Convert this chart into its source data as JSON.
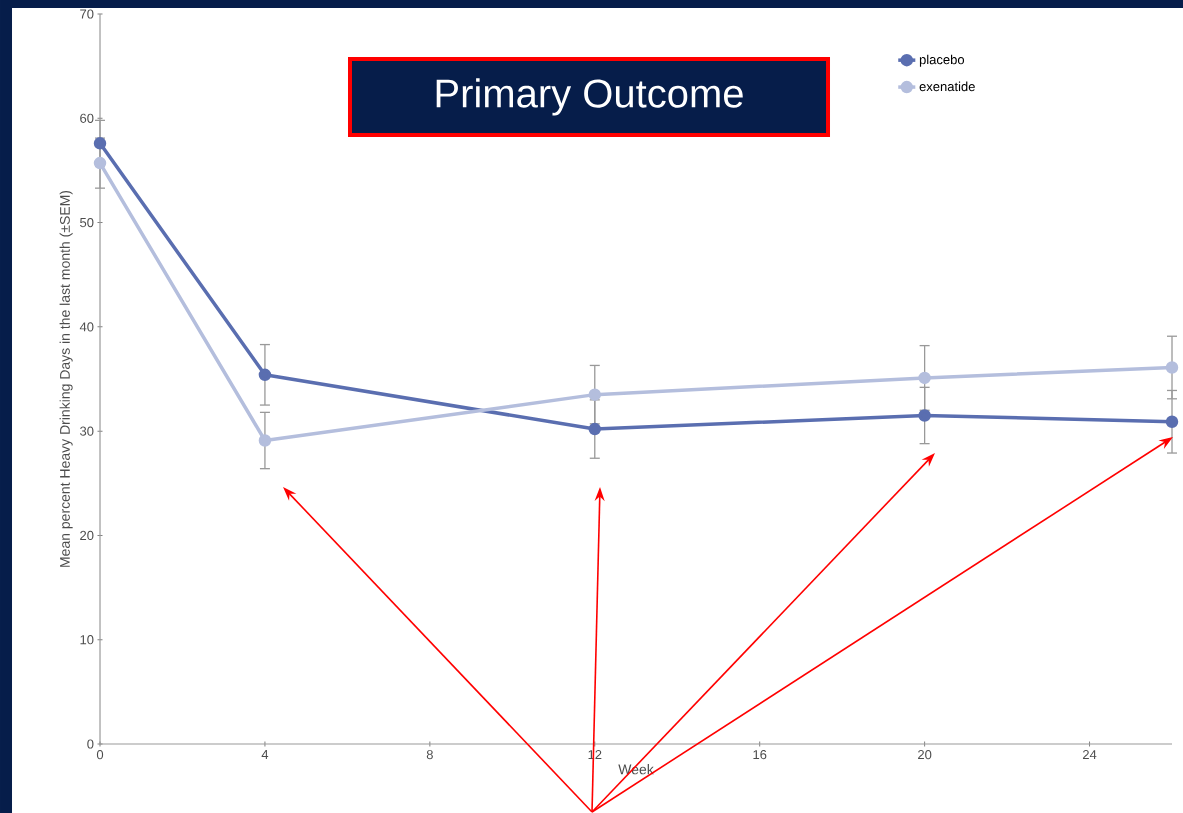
{
  "chart_data": {
    "type": "line",
    "title": "Primary Outcome",
    "xlabel": "Week",
    "ylabel": "Mean percent Heavy Drinking Days in the last month (±SEM)",
    "xlim": [
      0,
      26
    ],
    "xticks": [
      0,
      4,
      8,
      12,
      16,
      20,
      24
    ],
    "ylim": [
      0,
      70
    ],
    "yticks": [
      0,
      10,
      20,
      30,
      40,
      50,
      60,
      70
    ],
    "x": [
      0,
      4,
      12,
      20,
      26
    ],
    "series": [
      {
        "name": "placebo",
        "color": "#5a6eb0",
        "values": [
          57.6,
          35.4,
          30.2,
          31.5,
          30.9
        ],
        "errors": [
          2.2,
          2.9,
          2.8,
          2.7,
          3.0
        ]
      },
      {
        "name": "exenatide",
        "color": "#b4bedd",
        "values": [
          55.7,
          29.1,
          33.5,
          35.1,
          36.1
        ],
        "errors": [
          2.4,
          2.7,
          2.8,
          3.1,
          3.0
        ]
      }
    ],
    "legend": "top right",
    "marker": "circle",
    "line_style": "solid",
    "grid": false
  }
}
